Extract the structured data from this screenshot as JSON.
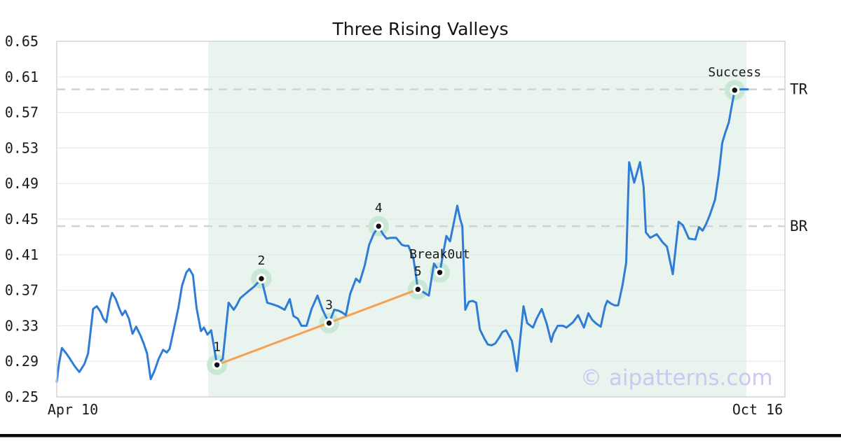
{
  "page": {
    "background": "#ffffff",
    "bottom_bar_color": "#0b0b0b"
  },
  "watermark": {
    "text": "© aipatterns.com",
    "color": "#c9c9f1"
  },
  "style": {
    "line_color": "#2e7cd6",
    "trend_color": "#f7a050",
    "halo_color": "#c8e7d4",
    "marker_ring_color": "#ffffff",
    "marker_dot_color": "#111111",
    "grid_color": "#e7e7e7",
    "spine_color": "#d4d4d4",
    "dash_color": "#d2d2d2",
    "region_color": "#e9f4ee",
    "text_color": "#1a1a1a",
    "title_color": "#141414"
  },
  "chart_data": {
    "type": "line",
    "title": "Three Rising Valleys",
    "legend": "none",
    "grid": "horizontal",
    "x_axis": {
      "start_label": "Apr 10",
      "end_label": "Oct 16"
    },
    "y_axis": {
      "min": 0.25,
      "max": 0.65,
      "tick_values": [
        0.25,
        0.29,
        0.33,
        0.37,
        0.41,
        0.45,
        0.49,
        0.53,
        0.57,
        0.61,
        0.65
      ],
      "tick_labels": [
        "0.25",
        "0.29",
        "0.33",
        "0.37",
        "0.41",
        "0.45",
        "0.49",
        "0.53",
        "0.57",
        "0.61",
        "0.65"
      ]
    },
    "hlines": [
      {
        "label": "TR",
        "value": 0.596
      },
      {
        "label": "BR",
        "value": 0.442
      }
    ],
    "shaded_region": {
      "x_start_pct": 20.8,
      "x_end_pct": 94.7
    },
    "trendline": {
      "from_pct": 22.0,
      "from_value": 0.286,
      "to_pct": 49.6,
      "to_value": 0.371
    },
    "annotations": [
      {
        "label": "1",
        "x_pct": 22.0,
        "value": 0.286
      },
      {
        "label": "2",
        "x_pct": 28.1,
        "value": 0.383
      },
      {
        "label": "3",
        "x_pct": 37.4,
        "value": 0.333
      },
      {
        "label": "4",
        "x_pct": 44.2,
        "value": 0.442
      },
      {
        "label": "5",
        "x_pct": 49.6,
        "value": 0.371
      },
      {
        "label": "Break0ut",
        "x_pct": 52.6,
        "value": 0.39
      },
      {
        "label": "Success",
        "x_pct": 93.1,
        "value": 0.595
      }
    ],
    "series": {
      "name": "price",
      "x_unit": "percent_of_x_axis_from_Apr10_to_Oct16",
      "points": [
        [
          0.0,
          0.267
        ],
        [
          0.3,
          0.287
        ],
        [
          0.7,
          0.305
        ],
        [
          1.3,
          0.299
        ],
        [
          1.8,
          0.293
        ],
        [
          2.5,
          0.284
        ],
        [
          3.1,
          0.278
        ],
        [
          3.8,
          0.287
        ],
        [
          4.3,
          0.299
        ],
        [
          5.0,
          0.349
        ],
        [
          5.5,
          0.352
        ],
        [
          6.0,
          0.346
        ],
        [
          6.4,
          0.338
        ],
        [
          6.8,
          0.334
        ],
        [
          7.3,
          0.358
        ],
        [
          7.6,
          0.367
        ],
        [
          8.1,
          0.36
        ],
        [
          8.6,
          0.349
        ],
        [
          9.0,
          0.342
        ],
        [
          9.4,
          0.347
        ],
        [
          9.9,
          0.338
        ],
        [
          10.4,
          0.321
        ],
        [
          10.9,
          0.329
        ],
        [
          11.5,
          0.319
        ],
        [
          11.9,
          0.311
        ],
        [
          12.4,
          0.299
        ],
        [
          12.9,
          0.27
        ],
        [
          13.4,
          0.279
        ],
        [
          14.0,
          0.293
        ],
        [
          14.6,
          0.303
        ],
        [
          15.1,
          0.3
        ],
        [
          15.5,
          0.304
        ],
        [
          16.1,
          0.327
        ],
        [
          16.7,
          0.35
        ],
        [
          17.2,
          0.375
        ],
        [
          17.8,
          0.39
        ],
        [
          18.2,
          0.394
        ],
        [
          18.7,
          0.387
        ],
        [
          19.2,
          0.35
        ],
        [
          19.8,
          0.324
        ],
        [
          20.2,
          0.328
        ],
        [
          20.7,
          0.32
        ],
        [
          21.2,
          0.325
        ],
        [
          22.0,
          0.286
        ],
        [
          22.8,
          0.293
        ],
        [
          23.6,
          0.356
        ],
        [
          24.3,
          0.348
        ],
        [
          24.7,
          0.353
        ],
        [
          25.2,
          0.361
        ],
        [
          26.2,
          0.368
        ],
        [
          27.1,
          0.374
        ],
        [
          28.1,
          0.383
        ],
        [
          28.9,
          0.356
        ],
        [
          29.7,
          0.354
        ],
        [
          30.4,
          0.352
        ],
        [
          31.3,
          0.348
        ],
        [
          32.0,
          0.36
        ],
        [
          32.5,
          0.341
        ],
        [
          33.1,
          0.338
        ],
        [
          33.6,
          0.33
        ],
        [
          34.3,
          0.33
        ],
        [
          35.0,
          0.349
        ],
        [
          35.8,
          0.364
        ],
        [
          36.5,
          0.348
        ],
        [
          37.4,
          0.333
        ],
        [
          38.1,
          0.348
        ],
        [
          38.7,
          0.347
        ],
        [
          39.2,
          0.345
        ],
        [
          39.7,
          0.342
        ],
        [
          40.3,
          0.366
        ],
        [
          41.1,
          0.383
        ],
        [
          41.6,
          0.379
        ],
        [
          42.3,
          0.398
        ],
        [
          42.9,
          0.421
        ],
        [
          43.5,
          0.433
        ],
        [
          44.2,
          0.442
        ],
        [
          44.8,
          0.433
        ],
        [
          45.3,
          0.428
        ],
        [
          45.9,
          0.429
        ],
        [
          46.6,
          0.429
        ],
        [
          47.4,
          0.421
        ],
        [
          47.8,
          0.42
        ],
        [
          48.3,
          0.42
        ],
        [
          49.0,
          0.405
        ],
        [
          49.6,
          0.371
        ],
        [
          50.3,
          0.368
        ],
        [
          51.1,
          0.364
        ],
        [
          51.8,
          0.4
        ],
        [
          52.2,
          0.395
        ],
        [
          52.6,
          0.39
        ],
        [
          53.5,
          0.431
        ],
        [
          54.0,
          0.425
        ],
        [
          55.0,
          0.465
        ],
        [
          55.4,
          0.45
        ],
        [
          55.7,
          0.442
        ],
        [
          56.1,
          0.348
        ],
        [
          56.6,
          0.357
        ],
        [
          57.1,
          0.358
        ],
        [
          57.6,
          0.356
        ],
        [
          58.1,
          0.326
        ],
        [
          58.7,
          0.316
        ],
        [
          59.2,
          0.309
        ],
        [
          59.7,
          0.308
        ],
        [
          60.2,
          0.31
        ],
        [
          60.7,
          0.316
        ],
        [
          61.2,
          0.323
        ],
        [
          61.7,
          0.325
        ],
        [
          62.5,
          0.313
        ],
        [
          63.2,
          0.279
        ],
        [
          64.1,
          0.352
        ],
        [
          64.6,
          0.333
        ],
        [
          65.4,
          0.328
        ],
        [
          65.9,
          0.338
        ],
        [
          66.6,
          0.349
        ],
        [
          67.3,
          0.332
        ],
        [
          67.9,
          0.312
        ],
        [
          68.2,
          0.321
        ],
        [
          68.8,
          0.33
        ],
        [
          69.5,
          0.33
        ],
        [
          70.0,
          0.328
        ],
        [
          70.9,
          0.334
        ],
        [
          71.6,
          0.342
        ],
        [
          72.4,
          0.328
        ],
        [
          73.0,
          0.344
        ],
        [
          73.5,
          0.337
        ],
        [
          74.0,
          0.333
        ],
        [
          74.7,
          0.329
        ],
        [
          75.3,
          0.352
        ],
        [
          75.6,
          0.358
        ],
        [
          76.1,
          0.355
        ],
        [
          76.6,
          0.353
        ],
        [
          77.1,
          0.353
        ],
        [
          77.7,
          0.376
        ],
        [
          78.2,
          0.401
        ],
        [
          78.6,
          0.514
        ],
        [
          79.3,
          0.491
        ],
        [
          80.1,
          0.514
        ],
        [
          80.6,
          0.486
        ],
        [
          80.9,
          0.435
        ],
        [
          81.5,
          0.429
        ],
        [
          82.4,
          0.433
        ],
        [
          83.2,
          0.424
        ],
        [
          83.8,
          0.419
        ],
        [
          84.6,
          0.388
        ],
        [
          85.4,
          0.447
        ],
        [
          86.0,
          0.443
        ],
        [
          86.8,
          0.428
        ],
        [
          87.7,
          0.427
        ],
        [
          88.2,
          0.441
        ],
        [
          88.7,
          0.437
        ],
        [
          89.2,
          0.445
        ],
        [
          89.7,
          0.455
        ],
        [
          90.4,
          0.472
        ],
        [
          90.9,
          0.5
        ],
        [
          91.4,
          0.536
        ],
        [
          91.8,
          0.547
        ],
        [
          92.3,
          0.559
        ],
        [
          92.6,
          0.573
        ],
        [
          93.1,
          0.595
        ],
        [
          94.0,
          0.596
        ],
        [
          94.9,
          0.596
        ]
      ]
    }
  }
}
